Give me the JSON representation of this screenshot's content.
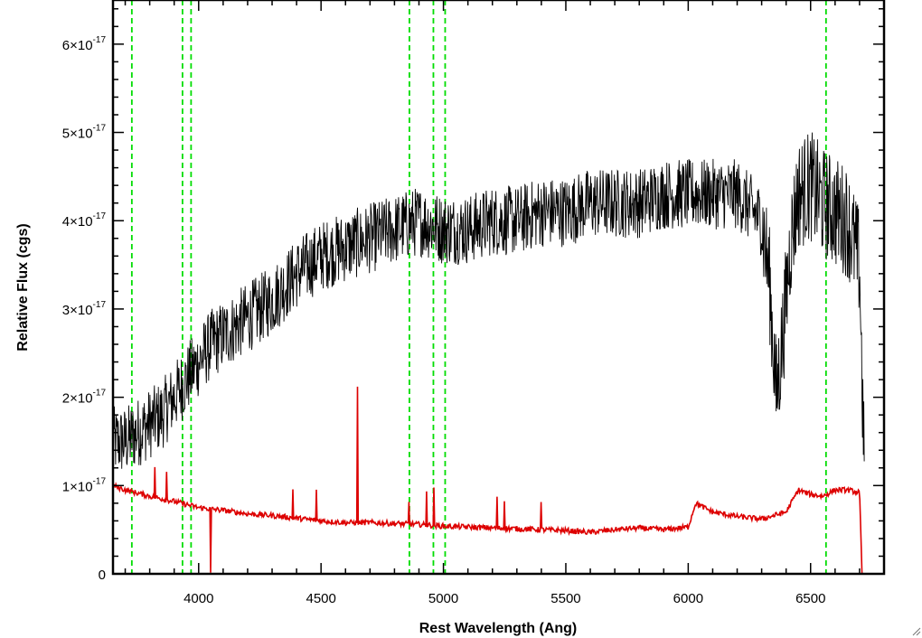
{
  "chart_data": {
    "type": "line",
    "xlabel": "Rest Wavelength (Ang)",
    "ylabel": "Relative Flux (cgs)",
    "xlim": [
      3650,
      6800
    ],
    "ylim": [
      0,
      6.5e-17
    ],
    "x_ticks": [
      {
        "value": 4000,
        "label": "4000"
      },
      {
        "value": 4500,
        "label": "4500"
      },
      {
        "value": 5000,
        "label": "5000"
      },
      {
        "value": 5500,
        "label": "5500"
      },
      {
        "value": 6000,
        "label": "6000"
      },
      {
        "value": 6500,
        "label": "6500"
      }
    ],
    "y_ticks": [
      {
        "value": 0,
        "mantissa": "0",
        "exponent": ""
      },
      {
        "value": 1e-17,
        "mantissa": "1×10",
        "exponent": "-17"
      },
      {
        "value": 2e-17,
        "mantissa": "2×10",
        "exponent": "-17"
      },
      {
        "value": 3e-17,
        "mantissa": "3×10",
        "exponent": "-17"
      },
      {
        "value": 4e-17,
        "mantissa": "4×10",
        "exponent": "-17"
      },
      {
        "value": 5e-17,
        "mantissa": "5×10",
        "exponent": "-17"
      },
      {
        "value": 6e-17,
        "mantissa": "6×10",
        "exponent": "-17"
      }
    ],
    "reference_lines_x": [
      3727,
      3934,
      3969,
      4861,
      4959,
      5007,
      6563
    ],
    "reference_line_color": "#00dd00",
    "series": [
      {
        "color": "#000000",
        "x": [
          3650,
          3700,
          3750,
          3800,
          3850,
          3900,
          3950,
          4000,
          4050,
          4100,
          4200,
          4300,
          4400,
          4500,
          4600,
          4700,
          4800,
          4900,
          5000,
          5100,
          5200,
          5300,
          5400,
          5500,
          5600,
          5700,
          5800,
          5900,
          6000,
          6100,
          6200,
          6300,
          6330,
          6360,
          6390,
          6420,
          6450,
          6500,
          6550,
          6600,
          6650,
          6700,
          6720
        ],
        "y": [
          1.5e-17,
          1.5e-17,
          1.6e-17,
          1.7e-17,
          1.8e-17,
          2e-17,
          2.2e-17,
          2.4e-17,
          2.6e-17,
          2.7e-17,
          2.9e-17,
          3.1e-17,
          3.4e-17,
          3.6e-17,
          3.7e-17,
          3.8e-17,
          3.9e-17,
          4e-17,
          3.9e-17,
          3.9e-17,
          4e-17,
          4e-17,
          4.1e-17,
          4.1e-17,
          4.2e-17,
          4.2e-17,
          4.2e-17,
          4.3e-17,
          4.3e-17,
          4.3e-17,
          4.3e-17,
          4e-17,
          3.4e-17,
          2e-17,
          2.8e-17,
          3.8e-17,
          4.3e-17,
          4.4e-17,
          4.2e-17,
          4.1e-17,
          4e-17,
          3.5e-17,
          1e-17
        ],
        "noise": 4e-18
      },
      {
        "color": "#dd0000",
        "x": [
          3650,
          3700,
          3800,
          3900,
          4000,
          4100,
          4200,
          4300,
          4400,
          4500,
          4600,
          4700,
          4800,
          4900,
          5000,
          5100,
          5200,
          5300,
          5400,
          5500,
          5600,
          5700,
          5800,
          5900,
          6000,
          6030,
          6100,
          6200,
          6300,
          6400,
          6450,
          6500,
          6550,
          6600,
          6650,
          6700,
          6710
        ],
        "y": [
          1e-17,
          9.5e-18,
          8.8e-18,
          8.2e-18,
          7.5e-18,
          7.2e-18,
          6.8e-18,
          6.6e-18,
          6.3e-18,
          6e-18,
          5.8e-18,
          5.8e-18,
          5.7e-18,
          5.6e-18,
          5.4e-18,
          5.3e-18,
          5.2e-18,
          5.1e-18,
          5e-18,
          4.9e-18,
          4.7e-18,
          5e-18,
          5.2e-18,
          5e-18,
          5.3e-18,
          8e-18,
          7e-18,
          6.5e-18,
          6.2e-18,
          7e-18,
          9.5e-18,
          9e-18,
          8.8e-18,
          9.5e-18,
          9.5e-18,
          9.2e-18,
          0.0
        ],
        "noise": 3e-19,
        "features": [
          {
            "x": 3820,
            "y": 1.2e-17
          },
          {
            "x": 3870,
            "y": 1.15e-17
          },
          {
            "x": 4050,
            "y": 0.0
          },
          {
            "x": 4385,
            "y": 9.5e-18
          },
          {
            "x": 4480,
            "y": 9.5e-18
          },
          {
            "x": 4650,
            "y": 2.1e-17
          },
          {
            "x": 4860,
            "y": 8e-18
          },
          {
            "x": 4930,
            "y": 9.5e-18
          },
          {
            "x": 4960,
            "y": 9.5e-18
          },
          {
            "x": 5220,
            "y": 8.5e-18
          },
          {
            "x": 5250,
            "y": 8.5e-18
          },
          {
            "x": 5400,
            "y": 8e-18
          }
        ]
      }
    ]
  }
}
